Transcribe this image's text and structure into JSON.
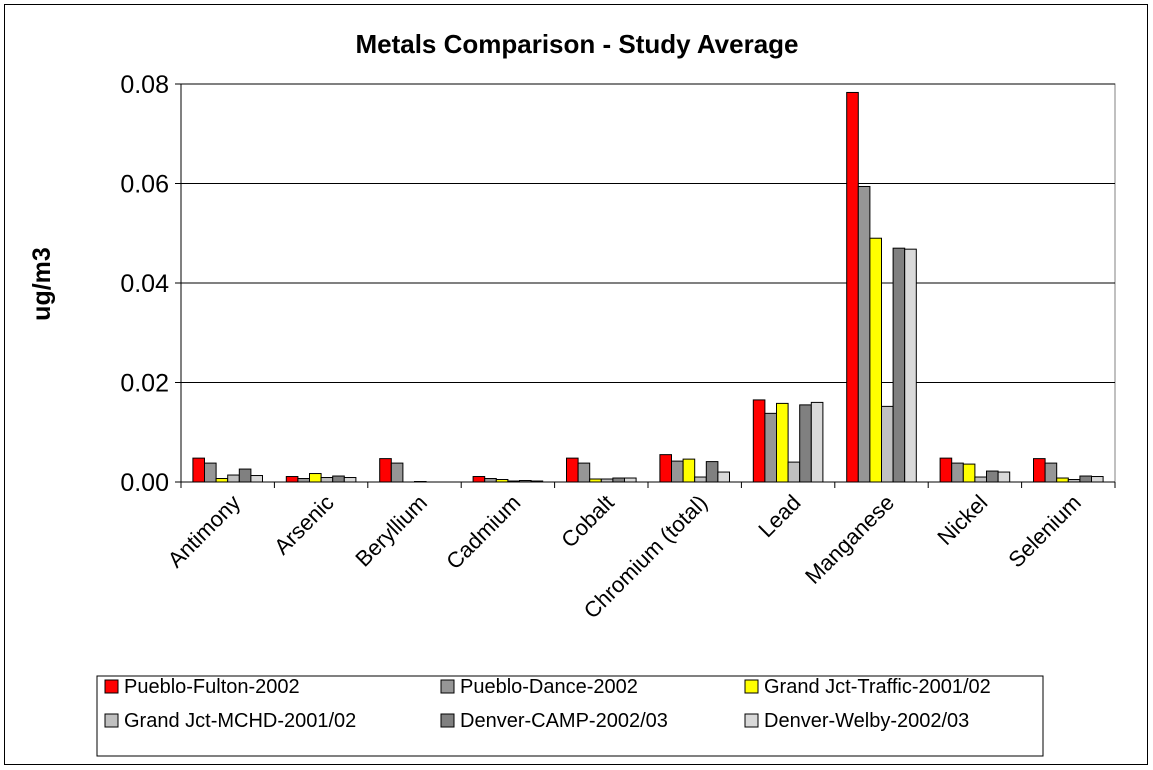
{
  "chart_data": {
    "type": "bar",
    "title": "Metals Comparison - Study Average",
    "xlabel": "",
    "ylabel": "ug/m3",
    "ylim": [
      0,
      0.08
    ],
    "yticks": [
      "0.00",
      "0.02",
      "0.04",
      "0.06",
      "0.08"
    ],
    "grid": true,
    "legend_position": "bottom",
    "categories": [
      "Antimony",
      "Arsenic",
      "Beryllium",
      "Cadmium",
      "Cobalt",
      "Chromium (total)",
      "Lead",
      "Manganese",
      "Nickel",
      "Selenium"
    ],
    "series": [
      {
        "name": "Pueblo-Fulton-2002",
        "color": "#ff0000",
        "values": [
          0.0048,
          0.0011,
          0.0047,
          0.0011,
          0.0048,
          0.0055,
          0.0165,
          0.0783,
          0.0048,
          0.0047
        ]
      },
      {
        "name": "Pueblo-Dance-2002",
        "color": "#969696",
        "values": [
          0.0038,
          0.0007,
          0.0038,
          0.0007,
          0.0038,
          0.0042,
          0.0138,
          0.0594,
          0.0038,
          0.0038
        ]
      },
      {
        "name": "Grand Jct-Traffic-2001/02",
        "color": "#ffff00",
        "values": [
          0.0007,
          0.0017,
          0.0,
          0.0005,
          0.0006,
          0.0046,
          0.0158,
          0.049,
          0.0036,
          0.0008
        ]
      },
      {
        "name": "Grand Jct-MCHD-2001/02",
        "color": "#c0c0c0",
        "values": [
          0.0014,
          0.0009,
          0.0001,
          0.0002,
          0.0006,
          0.001,
          0.004,
          0.0152,
          0.001,
          0.0005
        ]
      },
      {
        "name": "Denver-CAMP-2002/03",
        "color": "#808080",
        "values": [
          0.0026,
          0.0012,
          0.0,
          0.0003,
          0.0008,
          0.0041,
          0.0155,
          0.047,
          0.0022,
          0.0012
        ]
      },
      {
        "name": "Denver-Welby-2002/03",
        "color": "#d9d9d9",
        "values": [
          0.0013,
          0.0009,
          0.0,
          0.0002,
          0.0008,
          0.002,
          0.016,
          0.0468,
          0.002,
          0.0011
        ]
      }
    ]
  }
}
